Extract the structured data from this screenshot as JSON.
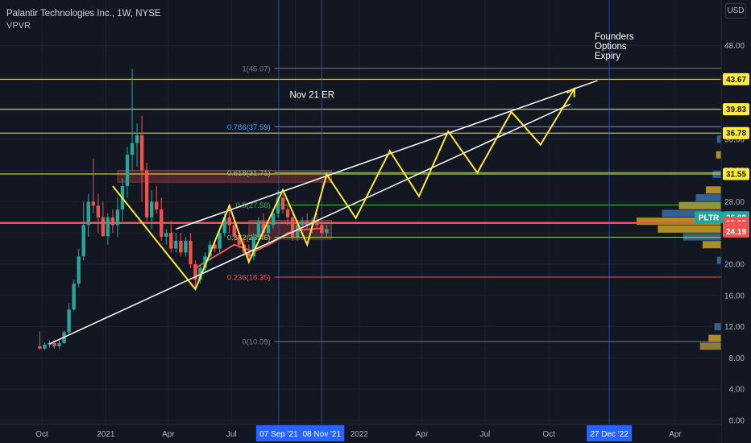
{
  "header": {
    "title": "Palantir Technologies Inc., 1W, NYSE",
    "indicator": "VPVR",
    "currency": "USD"
  },
  "colors": {
    "background": "#131722",
    "up": "#26a69a",
    "down": "#ef5350",
    "yellow": "#ffeb3b",
    "fib_line": "#787b86",
    "text": "#d1d4dc",
    "vertical_marker": "#2962ff"
  },
  "annotations": {
    "earnings": "Nov 21 ER",
    "expiry_lines": [
      "Founders",
      "Options",
      "Expiry"
    ]
  },
  "chart_data": {
    "type": "candlestick",
    "title": "Palantir Technologies Inc., 1W, NYSE",
    "y_axis": {
      "scale": "linear",
      "ylim": [
        0,
        52
      ],
      "ticks": [
        "48.00",
        "44.00",
        "40.00",
        "36.00",
        "32.00",
        "28.00",
        "24.00",
        "20.00",
        "16.00",
        "12.00",
        "8.00",
        "4.00",
        "0.00"
      ],
      "tick_values": [
        48,
        44,
        40,
        36,
        32,
        28,
        24,
        20,
        16,
        12,
        8,
        4,
        0
      ]
    },
    "x_axis": {
      "labels": [
        "Oct",
        "2021",
        "Apr",
        "Jul",
        "Oct",
        "2022",
        "Apr",
        "Jul",
        "Oct",
        "Apr"
      ],
      "label_dates": [
        "2020-10-01",
        "2021-01-01",
        "2021-04-01",
        "2021-07-01",
        "2021-10-01",
        "2022-01-01",
        "2022-04-01",
        "2022-07-01",
        "2022-10-01",
        "2023-04-01"
      ],
      "highlighted": [
        {
          "label": "07 Sep '21",
          "date": "2021-09-07"
        },
        {
          "label": "08 Nov '21",
          "date": "2021-11-08"
        },
        {
          "label": "27 Dec '22",
          "date": "2022-12-27"
        }
      ]
    },
    "candles": [
      {
        "d": "2020-09-28",
        "o": 9.5,
        "h": 11.4,
        "l": 9.0,
        "c": 9.2
      },
      {
        "d": "2020-10-05",
        "o": 9.2,
        "h": 10.0,
        "l": 9.0,
        "c": 9.7
      },
      {
        "d": "2020-10-12",
        "o": 9.7,
        "h": 10.2,
        "l": 9.3,
        "c": 9.9
      },
      {
        "d": "2020-10-19",
        "o": 9.9,
        "h": 10.1,
        "l": 9.2,
        "c": 9.5
      },
      {
        "d": "2020-10-26",
        "o": 9.5,
        "h": 10.3,
        "l": 9.2,
        "c": 9.9
      },
      {
        "d": "2020-11-02",
        "o": 9.9,
        "h": 11.5,
        "l": 9.8,
        "c": 11.3
      },
      {
        "d": "2020-11-09",
        "o": 11.3,
        "h": 15.0,
        "l": 11.0,
        "c": 14.2
      },
      {
        "d": "2020-11-16",
        "o": 14.2,
        "h": 18.0,
        "l": 14.0,
        "c": 17.5
      },
      {
        "d": "2020-11-23",
        "o": 17.5,
        "h": 22.0,
        "l": 17.0,
        "c": 21.0
      },
      {
        "d": "2020-11-30",
        "o": 21.0,
        "h": 28.0,
        "l": 20.5,
        "c": 25.0
      },
      {
        "d": "2020-12-07",
        "o": 25.0,
        "h": 29.0,
        "l": 23.5,
        "c": 28.0
      },
      {
        "d": "2020-12-14",
        "o": 28.0,
        "h": 33.5,
        "l": 26.5,
        "c": 27.5
      },
      {
        "d": "2020-12-21",
        "o": 27.5,
        "h": 29.0,
        "l": 24.0,
        "c": 26.0
      },
      {
        "d": "2020-12-28",
        "o": 26.0,
        "h": 28.0,
        "l": 23.5,
        "c": 23.6
      },
      {
        "d": "2021-01-04",
        "o": 23.6,
        "h": 26.5,
        "l": 22.5,
        "c": 26.0
      },
      {
        "d": "2021-01-11",
        "o": 26.0,
        "h": 27.0,
        "l": 24.0,
        "c": 25.0
      },
      {
        "d": "2021-01-18",
        "o": 25.0,
        "h": 28.5,
        "l": 23.5,
        "c": 27.0
      },
      {
        "d": "2021-01-25",
        "o": 27.0,
        "h": 31.0,
        "l": 25.5,
        "c": 30.0
      },
      {
        "d": "2021-02-01",
        "o": 30.0,
        "h": 35.0,
        "l": 28.5,
        "c": 34.0
      },
      {
        "d": "2021-02-08",
        "o": 34.0,
        "h": 45.0,
        "l": 32.0,
        "c": 35.5
      },
      {
        "d": "2021-02-15",
        "o": 35.5,
        "h": 38.0,
        "l": 32.5,
        "c": 36.5
      },
      {
        "d": "2021-02-22",
        "o": 36.5,
        "h": 39.0,
        "l": 28.0,
        "c": 32.0
      },
      {
        "d": "2021-03-01",
        "o": 32.0,
        "h": 33.0,
        "l": 25.5,
        "c": 26.0
      },
      {
        "d": "2021-03-08",
        "o": 26.0,
        "h": 29.5,
        "l": 24.5,
        "c": 28.0
      },
      {
        "d": "2021-03-15",
        "o": 28.0,
        "h": 30.0,
        "l": 26.5,
        "c": 27.0
      },
      {
        "d": "2021-03-22",
        "o": 27.0,
        "h": 28.5,
        "l": 23.0,
        "c": 23.5
      },
      {
        "d": "2021-03-29",
        "o": 23.5,
        "h": 24.5,
        "l": 22.5,
        "c": 24.0
      },
      {
        "d": "2021-04-05",
        "o": 24.0,
        "h": 25.5,
        "l": 21.5,
        "c": 22.0
      },
      {
        "d": "2021-04-12",
        "o": 22.0,
        "h": 24.0,
        "l": 21.5,
        "c": 23.0
      },
      {
        "d": "2021-04-19",
        "o": 23.0,
        "h": 24.0,
        "l": 21.0,
        "c": 21.5
      },
      {
        "d": "2021-04-26",
        "o": 21.5,
        "h": 23.5,
        "l": 21.0,
        "c": 23.0
      },
      {
        "d": "2021-05-03",
        "o": 23.0,
        "h": 24.0,
        "l": 19.5,
        "c": 20.0
      },
      {
        "d": "2021-05-10",
        "o": 20.0,
        "h": 20.5,
        "l": 17.0,
        "c": 18.0
      },
      {
        "d": "2021-05-17",
        "o": 18.0,
        "h": 20.0,
        "l": 17.5,
        "c": 19.5
      },
      {
        "d": "2021-05-24",
        "o": 19.5,
        "h": 21.5,
        "l": 19.0,
        "c": 21.0
      },
      {
        "d": "2021-05-31",
        "o": 21.0,
        "h": 23.0,
        "l": 20.5,
        "c": 22.5
      },
      {
        "d": "2021-06-07",
        "o": 22.5,
        "h": 23.0,
        "l": 21.5,
        "c": 22.0
      },
      {
        "d": "2021-06-14",
        "o": 22.0,
        "h": 24.5,
        "l": 21.5,
        "c": 24.0
      },
      {
        "d": "2021-06-21",
        "o": 24.0,
        "h": 26.5,
        "l": 23.5,
        "c": 26.0
      },
      {
        "d": "2021-06-28",
        "o": 26.0,
        "h": 27.0,
        "l": 24.0,
        "c": 25.0
      },
      {
        "d": "2021-07-05",
        "o": 25.0,
        "h": 25.5,
        "l": 23.0,
        "c": 23.5
      },
      {
        "d": "2021-07-12",
        "o": 23.5,
        "h": 24.0,
        "l": 22.0,
        "c": 22.5
      },
      {
        "d": "2021-07-19",
        "o": 22.5,
        "h": 23.5,
        "l": 21.0,
        "c": 21.5
      },
      {
        "d": "2021-07-26",
        "o": 21.5,
        "h": 22.5,
        "l": 20.0,
        "c": 21.0
      },
      {
        "d": "2021-08-02",
        "o": 21.0,
        "h": 24.0,
        "l": 20.5,
        "c": 23.5
      },
      {
        "d": "2021-08-09",
        "o": 23.5,
        "h": 26.0,
        "l": 23.0,
        "c": 25.5
      },
      {
        "d": "2021-08-16",
        "o": 25.5,
        "h": 26.5,
        "l": 23.5,
        "c": 24.0
      },
      {
        "d": "2021-08-23",
        "o": 24.0,
        "h": 25.5,
        "l": 23.5,
        "c": 25.0
      },
      {
        "d": "2021-08-30",
        "o": 25.0,
        "h": 27.0,
        "l": 24.5,
        "c": 26.5
      },
      {
        "d": "2021-09-06",
        "o": 26.5,
        "h": 29.5,
        "l": 26.0,
        "c": 28.5
      },
      {
        "d": "2021-09-13",
        "o": 28.5,
        "h": 29.0,
        "l": 26.5,
        "c": 27.0
      },
      {
        "d": "2021-09-20",
        "o": 27.0,
        "h": 27.5,
        "l": 25.0,
        "c": 26.0
      },
      {
        "d": "2021-09-27",
        "o": 26.0,
        "h": 26.5,
        "l": 23.0,
        "c": 23.5
      },
      {
        "d": "2021-10-04",
        "o": 23.5,
        "h": 25.5,
        "l": 23.0,
        "c": 25.0
      },
      {
        "d": "2021-10-11",
        "o": 25.0,
        "h": 26.0,
        "l": 24.5,
        "c": 25.5
      },
      {
        "d": "2021-10-18",
        "o": 25.5,
        "h": 26.5,
        "l": 24.5,
        "c": 25.0
      },
      {
        "d": "2021-10-25",
        "o": 25.0,
        "h": 26.0,
        "l": 24.0,
        "c": 25.5
      },
      {
        "d": "2021-11-01",
        "o": 25.5,
        "h": 26.5,
        "l": 24.5,
        "c": 25.0
      },
      {
        "d": "2021-11-08",
        "o": 25.0,
        "h": 25.5,
        "l": 23.5,
        "c": 24.0
      },
      {
        "d": "2021-11-15",
        "o": 24.0,
        "h": 25.0,
        "l": 23.5,
        "c": 24.5
      }
    ],
    "moving_average": {
      "name": "",
      "color": "#ef5350",
      "points": [
        {
          "d": "2021-05-10",
          "v": 19.5
        },
        {
          "d": "2021-06-07",
          "v": 21.0
        },
        {
          "d": "2021-07-05",
          "v": 22.5
        },
        {
          "d": "2021-08-02",
          "v": 21.6
        },
        {
          "d": "2021-08-30",
          "v": 22.8
        },
        {
          "d": "2021-09-20",
          "v": 24.0
        },
        {
          "d": "2021-10-11",
          "v": 24.4
        },
        {
          "d": "2021-11-08",
          "v": 24.6
        }
      ]
    },
    "horizontal_levels": [
      {
        "value": 43.67,
        "label": "43.67",
        "color": "#ffeb3b"
      },
      {
        "value": 39.83,
        "label": "39.83",
        "color": "#ffeb3b"
      },
      {
        "value": 36.78,
        "label": "36.78",
        "color": "#ffeb3b"
      },
      {
        "value": 31.55,
        "label": "31.55",
        "color": "#ffeb3b"
      },
      {
        "value": 25.28,
        "label": "25.28",
        "color": "#ef5350"
      }
    ],
    "fibonacci": {
      "start_date": "2021-09-01",
      "end_date": "2022-12-27",
      "levels": [
        {
          "ratio": "1",
          "value": 45.07,
          "label": "1(45.07)",
          "color": "#787b86"
        },
        {
          "ratio": "0.786",
          "value": 37.59,
          "label": "0.786(37.59)",
          "color": "#42a5f5"
        },
        {
          "ratio": "0.618",
          "value": 31.71,
          "label": "0.618(31.71)",
          "color": "#81c784"
        },
        {
          "ratio": "0.5",
          "value": 27.58,
          "label": "0.5(27.58)",
          "color": "#4caf50"
        },
        {
          "ratio": "0.382",
          "value": 23.46,
          "label": "0.382(23.46)",
          "color": "#9ccc65"
        },
        {
          "ratio": "0.236",
          "value": 18.35,
          "label": "0.236(18.35)",
          "color": "#ef5350"
        },
        {
          "ratio": "0",
          "value": 10.09,
          "label": "0(10.09)",
          "color": "#787b86"
        }
      ]
    },
    "trend_channel": {
      "color": "#ffffff",
      "lower": [
        {
          "d": "2020-10-12",
          "v": 9.8
        },
        {
          "d": "2022-11-01",
          "v": 40.5
        }
      ],
      "upper": [
        {
          "d": "2021-04-12",
          "v": 24.5
        },
        {
          "d": "2022-12-10",
          "v": 43.5
        }
      ]
    },
    "zigzag_projection": {
      "color": "#ffeb3b",
      "points": [
        {
          "d": "2021-01-11",
          "v": 30.0
        },
        {
          "d": "2021-05-10",
          "v": 16.8
        },
        {
          "d": "2021-06-28",
          "v": 27.5
        },
        {
          "d": "2021-07-26",
          "v": 20.3
        },
        {
          "d": "2021-09-13",
          "v": 29.5
        },
        {
          "d": "2021-10-18",
          "v": 22.5
        },
        {
          "d": "2021-11-15",
          "v": 31.5
        },
        {
          "d": "2021-12-27",
          "v": 25.9
        },
        {
          "d": "2022-02-14",
          "v": 34.5
        },
        {
          "d": "2022-03-28",
          "v": 28.7
        },
        {
          "d": "2022-05-09",
          "v": 37.0
        },
        {
          "d": "2022-06-20",
          "v": 31.7
        },
        {
          "d": "2022-08-08",
          "v": 39.5
        },
        {
          "d": "2022-09-19",
          "v": 35.3
        },
        {
          "d": "2022-11-07",
          "v": 42.5
        }
      ]
    },
    "vertical_markers": [
      "2021-09-07",
      "2021-11-08",
      "2022-12-27"
    ],
    "price_tags": [
      {
        "value": 43.67,
        "label": "43.67",
        "bg": "#ffeb3b",
        "fg": "#131722"
      },
      {
        "value": 39.83,
        "label": "39.83",
        "bg": "#ffeb3b",
        "fg": "#131722"
      },
      {
        "value": 36.78,
        "label": "36.78",
        "bg": "#ffeb3b",
        "fg": "#131722"
      },
      {
        "value": 31.55,
        "label": "31.55",
        "bg": "#ffeb3b",
        "fg": "#131722"
      },
      {
        "value": 26.0,
        "label": "26.00",
        "bg": "#26a69a",
        "fg": "#ffffff"
      },
      {
        "value": 25.28,
        "label": "25.28",
        "bg": "#ef5350",
        "fg": "#ffffff"
      },
      {
        "value": 24.7,
        "label": "24.70",
        "bg": "#ef5350",
        "fg": "#ffffff"
      },
      {
        "value": 24.64,
        "label": "24.64",
        "bg": "#ef5350",
        "fg": "#ffffff"
      },
      {
        "value": 24.19,
        "label": "24.19",
        "bg": "#ef5350",
        "fg": "#ffffff"
      }
    ],
    "symbol_tag": {
      "label": "PLTR",
      "value": 26.0,
      "bg": "#26a69a"
    },
    "volume_profile": [
      {
        "value": 9.5,
        "width": 0.25,
        "color": "#a68b3f"
      },
      {
        "value": 10.5,
        "width": 0.15,
        "color": "#c9a227"
      },
      {
        "value": 12.0,
        "width": 0.08,
        "color": "#3b6ea8"
      },
      {
        "value": 20.5,
        "width": 0.05,
        "color": "#3b6ea8"
      },
      {
        "value": 22.5,
        "width": 0.22,
        "color": "#c9a227"
      },
      {
        "value": 23.5,
        "width": 0.45,
        "color": "#3b6ea8"
      },
      {
        "value": 24.5,
        "width": 0.75,
        "color": "#c9a227"
      },
      {
        "value": 25.5,
        "width": 1.0,
        "color": "#c9a227"
      },
      {
        "value": 26.5,
        "width": 0.7,
        "color": "#3b6ea8"
      },
      {
        "value": 27.5,
        "width": 0.5,
        "color": "#c9a227"
      },
      {
        "value": 28.5,
        "width": 0.3,
        "color": "#3b6ea8"
      },
      {
        "value": 29.5,
        "width": 0.18,
        "color": "#c9a227"
      },
      {
        "value": 31.5,
        "width": 0.1,
        "color": "#3b6ea8"
      },
      {
        "value": 34.0,
        "width": 0.06,
        "color": "#c9a227"
      },
      {
        "value": 36.0,
        "width": 0.05,
        "color": "#3b6ea8"
      }
    ],
    "zones": [
      {
        "from": "2021-01-18",
        "to": "2021-11-22",
        "low": 30.5,
        "high": 32.0,
        "color": "#ef5350"
      },
      {
        "from": "2021-07-26",
        "to": "2021-11-22",
        "low": 23.2,
        "high": 25.6,
        "color": "#ef5350"
      }
    ]
  }
}
